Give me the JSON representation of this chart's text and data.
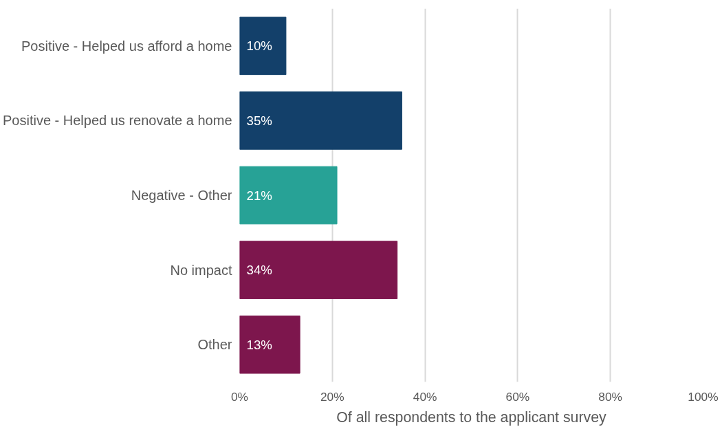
{
  "chart_data": {
    "type": "bar",
    "orientation": "horizontal",
    "categories": [
      "Positive - Helped us afford a home",
      "Positive - Helped us renovate a home",
      "Negative - Other",
      "No impact",
      "Other"
    ],
    "values": [
      10,
      35,
      21,
      34,
      13
    ],
    "colors": [
      "#13406a",
      "#13406a",
      "#27a296",
      "#7d164d",
      "#7d164d"
    ],
    "value_labels": [
      "10%",
      "35%",
      "21%",
      "34%",
      "13%"
    ],
    "xlabel": "Of all respondents to the applicant survey",
    "xlim": [
      0,
      100
    ],
    "xticks": [
      {
        "value": 0,
        "label": "0%"
      },
      {
        "value": 20,
        "label": "20%"
      },
      {
        "value": 40,
        "label": "40%"
      },
      {
        "value": 60,
        "label": "60%"
      },
      {
        "value": 80,
        "label": "80%"
      },
      {
        "value": 100,
        "label": "100%"
      }
    ],
    "grid": "x"
  }
}
